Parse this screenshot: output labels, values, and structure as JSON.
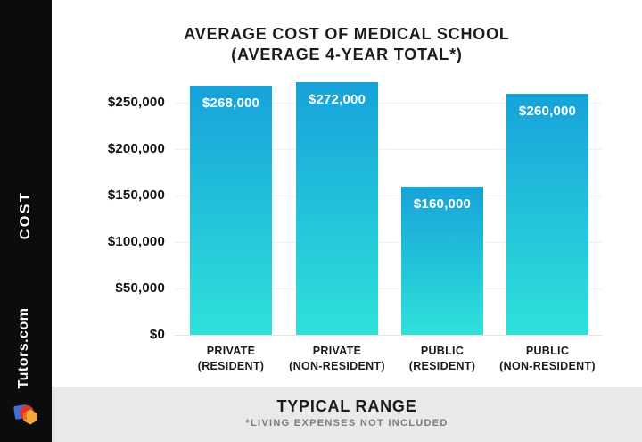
{
  "sidebar": {
    "cost_label": "COST",
    "brand": "Tutors.com",
    "logo_icon": "tutors-cube-logo",
    "bg_color": "#0c0c0c"
  },
  "title": {
    "line1": "AVERAGE COST OF MEDICAL SCHOOL",
    "line2": "(AVERAGE 4-YEAR TOTAL*)"
  },
  "footer": {
    "heading": "TYPICAL RANGE",
    "note": "*LIVING EXPENSES NOT INCLUDED",
    "bg_color": "#e9e9e9"
  },
  "chart_data": {
    "type": "bar",
    "title": "AVERAGE COST OF MEDICAL SCHOOL (AVERAGE 4-YEAR TOTAL*)",
    "categories": [
      "PRIVATE (RESIDENT)",
      "PRIVATE (NON-RESIDENT)",
      "PUBLIC (RESIDENT)",
      "PUBLIC (NON-RESIDENT)"
    ],
    "category_lines": [
      [
        "PRIVATE",
        "(RESIDENT)"
      ],
      [
        "PRIVATE",
        "(NON-RESIDENT)"
      ],
      [
        "PUBLIC",
        "(RESIDENT)"
      ],
      [
        "PUBLIC",
        "(NON-RESIDENT)"
      ]
    ],
    "values": [
      268000,
      272000,
      160000,
      260000
    ],
    "value_labels": [
      "$268,000",
      "$272,000",
      "$160,000",
      "$260,000"
    ],
    "y_ticks": [
      250000,
      200000,
      150000,
      100000,
      50000,
      0
    ],
    "y_tick_labels": [
      "$250,000",
      "$200,000",
      "$150,000",
      "$100,000",
      "$50,000",
      "$0"
    ],
    "ylim": [
      0,
      280000
    ],
    "xlabel": "",
    "ylabel": "COST",
    "grid": true,
    "legend": false,
    "bar_gradient_top": "#17a2da",
    "bar_gradient_bottom": "#2ee1da",
    "value_label_color": "#ffffff",
    "grid_color": "#f0f0f0"
  },
  "logo_colors": {
    "blue": "#3f6fd8",
    "red": "#d63a2f",
    "yellow": "#f3a73a"
  }
}
